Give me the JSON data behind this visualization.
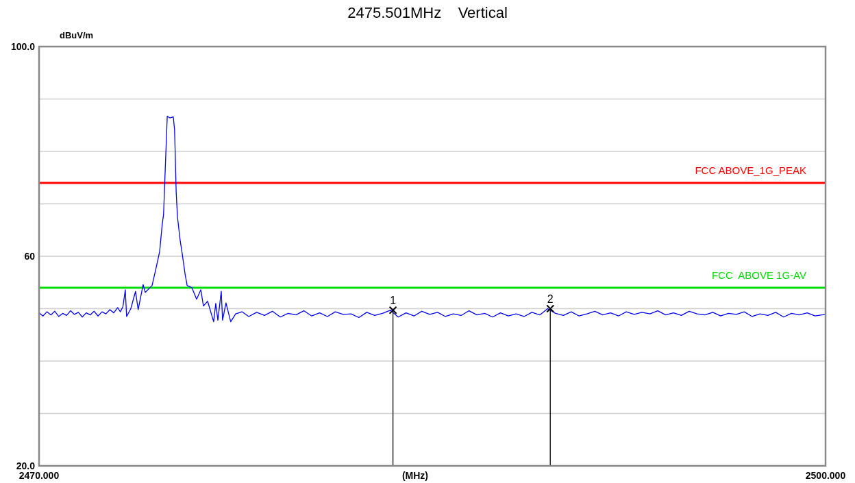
{
  "chart_data": {
    "type": "line",
    "title": "2475.501MHz    Vertical",
    "xlabel": "(MHz)",
    "ylabel": "dBuV/m",
    "xlim": [
      2470,
      2500
    ],
    "xticks": [
      {
        "value": 2470,
        "label": "2470.000"
      },
      {
        "value": 2500,
        "label": "2500.000"
      }
    ],
    "ylim": [
      20,
      100
    ],
    "yticks": [
      {
        "value": 20,
        "label": "20.0"
      },
      {
        "value": 30,
        "label": null
      },
      {
        "value": 40,
        "label": null
      },
      {
        "value": 50,
        "label": null
      },
      60,
      {
        "value": 70,
        "label": null
      },
      {
        "value": 80,
        "label": null
      },
      {
        "value": 90,
        "label": null
      },
      {
        "value": 100,
        "label": "100.0"
      }
    ],
    "grid": "y",
    "marker": "none",
    "line_style": "solid",
    "series": [
      {
        "color": "#0000ff",
        "x": [
          2470.0,
          2470.15,
          2470.3,
          2470.45,
          2470.6,
          2470.75,
          2470.9,
          2471.05,
          2471.2,
          2471.35,
          2471.5,
          2471.65,
          2471.8,
          2471.95,
          2472.1,
          2472.25,
          2472.4,
          2472.55,
          2472.7,
          2472.85,
          2473.0,
          2473.1,
          2473.2,
          2473.29,
          2473.34,
          2473.5,
          2473.68,
          2473.78,
          2473.97,
          2474.05,
          2474.31,
          2474.47,
          2474.6,
          2474.7,
          2474.75,
          2474.81,
          2474.86,
          2474.89,
          2474.99,
          2475.12,
          2475.17,
          2475.2,
          2475.23,
          2475.28,
          2475.38,
          2475.46,
          2475.57,
          2475.65,
          2475.83,
          2476.01,
          2476.17,
          2476.27,
          2476.43,
          2476.66,
          2476.74,
          2476.82,
          2476.95,
          2477.0,
          2477.13,
          2477.31,
          2477.5,
          2477.74,
          2478.0,
          2478.3,
          2478.6,
          2478.9,
          2479.2,
          2479.5,
          2479.8,
          2480.1,
          2480.4,
          2480.7,
          2481.0,
          2481.3,
          2481.6,
          2481.9,
          2482.2,
          2482.5,
          2482.8,
          2483.1,
          2483.4,
          2483.7,
          2484.0,
          2484.3,
          2484.6,
          2484.9,
          2485.2,
          2485.5,
          2485.8,
          2486.1,
          2486.4,
          2486.7,
          2487.0,
          2487.3,
          2487.6,
          2487.9,
          2488.2,
          2488.5,
          2488.8,
          2489.1,
          2489.4,
          2489.7,
          2490.0,
          2490.3,
          2490.6,
          2490.9,
          2491.2,
          2491.5,
          2491.8,
          2492.1,
          2492.4,
          2492.7,
          2493.0,
          2493.3,
          2493.6,
          2493.9,
          2494.2,
          2494.5,
          2494.8,
          2495.1,
          2495.4,
          2495.7,
          2496.0,
          2496.3,
          2496.6,
          2496.9,
          2497.2,
          2497.5,
          2497.8,
          2498.1,
          2498.4,
          2498.7,
          2499.0,
          2499.3,
          2499.6,
          2500.0
        ],
        "values": [
          49.2,
          48.6,
          49.4,
          48.8,
          49.5,
          48.5,
          49.1,
          48.7,
          49.6,
          48.9,
          49.3,
          48.4,
          49.2,
          48.8,
          49.5,
          48.6,
          49.4,
          49.0,
          49.8,
          49.2,
          50.2,
          49.4,
          50.4,
          53.6,
          48.5,
          50.0,
          53.3,
          49.8,
          54.6,
          53.1,
          54.4,
          57.9,
          60.9,
          66.2,
          68.0,
          76.2,
          82.7,
          86.7,
          86.4,
          86.6,
          84.1,
          78.4,
          72.3,
          67.5,
          63.1,
          60.5,
          56.6,
          54.4,
          54.0,
          51.8,
          53.6,
          50.5,
          51.4,
          47.5,
          51.0,
          47.8,
          53.3,
          47.8,
          51.1,
          47.5,
          49.0,
          49.4,
          48.5,
          49.3,
          48.7,
          49.5,
          48.4,
          49.1,
          48.8,
          49.6,
          48.6,
          49.2,
          48.5,
          49.4,
          48.9,
          49.0,
          48.3,
          49.3,
          48.7,
          49.1,
          49.7,
          48.4,
          49.2,
          48.6,
          49.5,
          48.9,
          49.3,
          48.5,
          49.0,
          48.7,
          49.6,
          48.8,
          49.1,
          48.4,
          49.2,
          48.6,
          49.0,
          48.5,
          49.3,
          48.8,
          50.0,
          49.1,
          48.7,
          49.4,
          48.6,
          49.0,
          49.5,
          48.8,
          49.2,
          48.6,
          49.4,
          48.9,
          49.3,
          49.0,
          49.6,
          48.8,
          49.2,
          48.7,
          49.5,
          49.0,
          48.8,
          49.3,
          48.6,
          49.1,
          48.9,
          49.4,
          48.5,
          49.0,
          48.7,
          49.3,
          48.4,
          49.1,
          48.8,
          49.2,
          48.6,
          48.9
        ]
      }
    ],
    "ref_lines": [
      {
        "axis": "y",
        "value": 74,
        "label": "FCC ABOVE_1G_PEAK",
        "color": "#ff0000"
      },
      {
        "axis": "y",
        "value": 54,
        "label": "FCC  ABOVE 1G-AV",
        "color": "#00dd00"
      }
    ],
    "annotations": [
      {
        "text": "1",
        "x": 2483.5,
        "y": 49.7
      },
      {
        "text": "2",
        "x": 2489.5,
        "y": 50.0
      }
    ]
  }
}
